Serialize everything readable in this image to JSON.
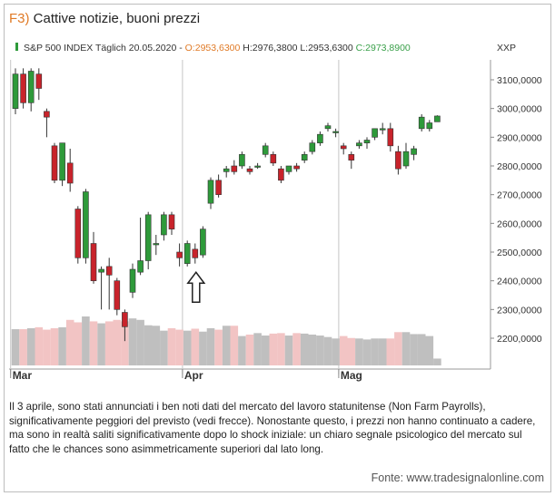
{
  "figure": {
    "label": "F3)",
    "title": "Cattive notizie, buoni prezzi",
    "caption": "Il 3 aprile, sono stati annunciati i ben noti dati del mercato del lavoro statunitense (Non Farm Payrolls), significativamente peggiori del previsto (vedi frecce). Nonostante questo, i prezzi non hanno continuato a cadere, ma sono in realtà saliti significativamente dopo lo shock iniziale: un chiaro segnale psicologico del mercato sul fatto che le chances sono asimmetricamente superiori dal lato long.",
    "source": "Fonte: www.tradesignalonline.com"
  },
  "colors": {
    "up": "#2e9a3a",
    "down": "#c8232b",
    "volume_up": "#bfbfbf",
    "volume_down": "#f2c4c4",
    "accent": "#e07a26",
    "open_label": "#3aa04a"
  },
  "chart_data": {
    "type": "candlestick",
    "header": {
      "symbol": "S&P 500 INDEX Täglich",
      "date": "20.05.2020",
      "open": "O:2953,6300",
      "high": "H:2976,3800",
      "low": "L:2953,6300",
      "close": "C:2973,8900",
      "y_unit": "XXP"
    },
    "y_ticks": [
      3100,
      3000,
      2900,
      2800,
      2700,
      2600,
      2500,
      2400,
      2300,
      2200
    ],
    "y_tick_labels": [
      "3100,0000",
      "3000,0000",
      "2900,0000",
      "2800,0000",
      "2700,0000",
      "2600,0000",
      "2500,0000",
      "2400,0000",
      "2300,0000",
      "2200,0000"
    ],
    "ylim": [
      2100,
      3200
    ],
    "x_labels": [
      {
        "label": "Mar",
        "index": 0
      },
      {
        "label": "Apr",
        "index": 22
      },
      {
        "label": "Mag",
        "index": 42
      }
    ],
    "annotation": {
      "type": "arrow-up",
      "index": 23,
      "value": 2455
    },
    "candles": [
      {
        "o": 3000,
        "h": 3140,
        "l": 2980,
        "c": 3120
      },
      {
        "o": 3120,
        "h": 3140,
        "l": 3000,
        "c": 3020
      },
      {
        "o": 3020,
        "h": 3140,
        "l": 2990,
        "c": 3130
      },
      {
        "o": 3120,
        "h": 3140,
        "l": 3030,
        "c": 3070
      },
      {
        "o": 2990,
        "h": 3000,
        "l": 2900,
        "c": 2970
      },
      {
        "o": 2870,
        "h": 2880,
        "l": 2740,
        "c": 2750
      },
      {
        "o": 2750,
        "h": 2880,
        "l": 2730,
        "c": 2880
      },
      {
        "o": 2810,
        "h": 2860,
        "l": 2710,
        "c": 2740
      },
      {
        "o": 2650,
        "h": 2660,
        "l": 2460,
        "c": 2480
      },
      {
        "o": 2480,
        "h": 2720,
        "l": 2460,
        "c": 2710
      },
      {
        "o": 2530,
        "h": 2570,
        "l": 2390,
        "c": 2400
      },
      {
        "o": 2430,
        "h": 2450,
        "l": 2300,
        "c": 2440
      },
      {
        "o": 2450,
        "h": 2480,
        "l": 2300,
        "c": 2420
      },
      {
        "o": 2400,
        "h": 2410,
        "l": 2280,
        "c": 2300
      },
      {
        "o": 2290,
        "h": 2300,
        "l": 2190,
        "c": 2240
      },
      {
        "o": 2360,
        "h": 2460,
        "l": 2340,
        "c": 2440
      },
      {
        "o": 2430,
        "h": 2620,
        "l": 2420,
        "c": 2470
      },
      {
        "o": 2470,
        "h": 2640,
        "l": 2440,
        "c": 2630
      },
      {
        "o": 2530,
        "h": 2560,
        "l": 2490,
        "c": 2530
      },
      {
        "o": 2560,
        "h": 2640,
        "l": 2540,
        "c": 2630
      },
      {
        "o": 2630,
        "h": 2640,
        "l": 2560,
        "c": 2580
      },
      {
        "o": 2500,
        "h": 2530,
        "l": 2450,
        "c": 2480
      },
      {
        "o": 2460,
        "h": 2540,
        "l": 2450,
        "c": 2530
      },
      {
        "o": 2510,
        "h": 2530,
        "l": 2460,
        "c": 2480
      },
      {
        "o": 2490,
        "h": 2590,
        "l": 2480,
        "c": 2580
      },
      {
        "o": 2670,
        "h": 2760,
        "l": 2650,
        "c": 2750
      },
      {
        "o": 2750,
        "h": 2770,
        "l": 2690,
        "c": 2700
      },
      {
        "o": 2780,
        "h": 2800,
        "l": 2760,
        "c": 2790
      },
      {
        "o": 2800,
        "h": 2820,
        "l": 2770,
        "c": 2780
      },
      {
        "o": 2800,
        "h": 2850,
        "l": 2790,
        "c": 2840
      },
      {
        "o": 2790,
        "h": 2800,
        "l": 2770,
        "c": 2780
      },
      {
        "o": 2800,
        "h": 2810,
        "l": 2790,
        "c": 2800
      },
      {
        "o": 2840,
        "h": 2880,
        "l": 2830,
        "c": 2870
      },
      {
        "o": 2840,
        "h": 2850,
        "l": 2800,
        "c": 2810
      },
      {
        "o": 2790,
        "h": 2800,
        "l": 2740,
        "c": 2750
      },
      {
        "o": 2780,
        "h": 2800,
        "l": 2770,
        "c": 2800
      },
      {
        "o": 2800,
        "h": 2810,
        "l": 2780,
        "c": 2790
      },
      {
        "o": 2820,
        "h": 2850,
        "l": 2810,
        "c": 2840
      },
      {
        "o": 2850,
        "h": 2890,
        "l": 2840,
        "c": 2880
      },
      {
        "o": 2880,
        "h": 2920,
        "l": 2870,
        "c": 2910
      },
      {
        "o": 2930,
        "h": 2950,
        "l": 2920,
        "c": 2940
      },
      {
        "o": 2920,
        "h": 2930,
        "l": 2900,
        "c": 2920
      },
      {
        "o": 2870,
        "h": 2880,
        "l": 2840,
        "c": 2860
      },
      {
        "o": 2840,
        "h": 2850,
        "l": 2790,
        "c": 2820
      },
      {
        "o": 2870,
        "h": 2890,
        "l": 2860,
        "c": 2880
      },
      {
        "o": 2880,
        "h": 2900,
        "l": 2860,
        "c": 2890
      },
      {
        "o": 2900,
        "h": 2930,
        "l": 2890,
        "c": 2930
      },
      {
        "o": 2930,
        "h": 2950,
        "l": 2910,
        "c": 2930
      },
      {
        "o": 2930,
        "h": 2950,
        "l": 2850,
        "c": 2870
      },
      {
        "o": 2850,
        "h": 2870,
        "l": 2770,
        "c": 2790
      },
      {
        "o": 2800,
        "h": 2880,
        "l": 2790,
        "c": 2850
      },
      {
        "o": 2840,
        "h": 2870,
        "l": 2820,
        "c": 2860
      },
      {
        "o": 2930,
        "h": 2980,
        "l": 2920,
        "c": 2970
      },
      {
        "o": 2930,
        "h": 2960,
        "l": 2920,
        "c": 2950
      },
      {
        "o": 2953.63,
        "h": 2976.38,
        "l": 2953.63,
        "c": 2973.89
      }
    ],
    "volume_relative": [
      0.74,
      0.74,
      0.76,
      0.78,
      0.73,
      0.76,
      0.78,
      0.93,
      0.88,
      1.0,
      0.9,
      0.86,
      0.9,
      0.93,
      0.9,
      0.96,
      0.93,
      0.82,
      0.81,
      0.71,
      0.76,
      0.73,
      0.71,
      0.75,
      0.69,
      0.76,
      0.73,
      0.81,
      0.81,
      0.6,
      0.63,
      0.66,
      0.61,
      0.65,
      0.66,
      0.61,
      0.66,
      0.65,
      0.63,
      0.61,
      0.58,
      0.55,
      0.6,
      0.56,
      0.55,
      0.53,
      0.55,
      0.55,
      0.55,
      0.68,
      0.68,
      0.64,
      0.64,
      0.6,
      0.14
    ]
  }
}
